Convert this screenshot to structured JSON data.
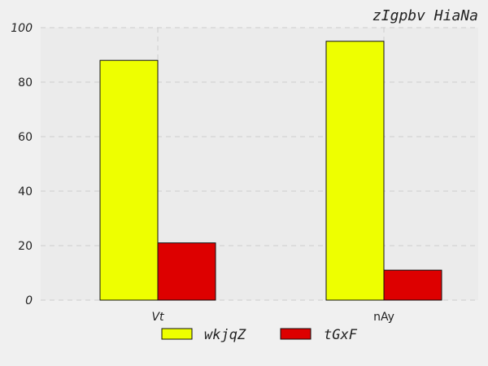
{
  "chart_data": {
    "type": "bar",
    "title": "zIgpbv HiaNa",
    "categories": [
      "Vt",
      "nAy"
    ],
    "category_styles": [
      "italic",
      "normal"
    ],
    "series": [
      {
        "name": "wkjqZ",
        "values": [
          88,
          95
        ],
        "color": "#eeff00"
      },
      {
        "name": "tGxF",
        "values": [
          21,
          11
        ],
        "color": "#dd0000"
      }
    ],
    "ylim": [
      0,
      100
    ],
    "yticks": [
      "0",
      "20",
      "40",
      "60",
      "80",
      "100"
    ],
    "ytick_styles": [
      "italic",
      "normal",
      "normal",
      "normal",
      "normal",
      "italic"
    ],
    "grid": true,
    "legend_position": "bottom-center",
    "plot_background": "#ebebeb",
    "grid_color": "#cccccc",
    "edge_color": "#111111"
  }
}
